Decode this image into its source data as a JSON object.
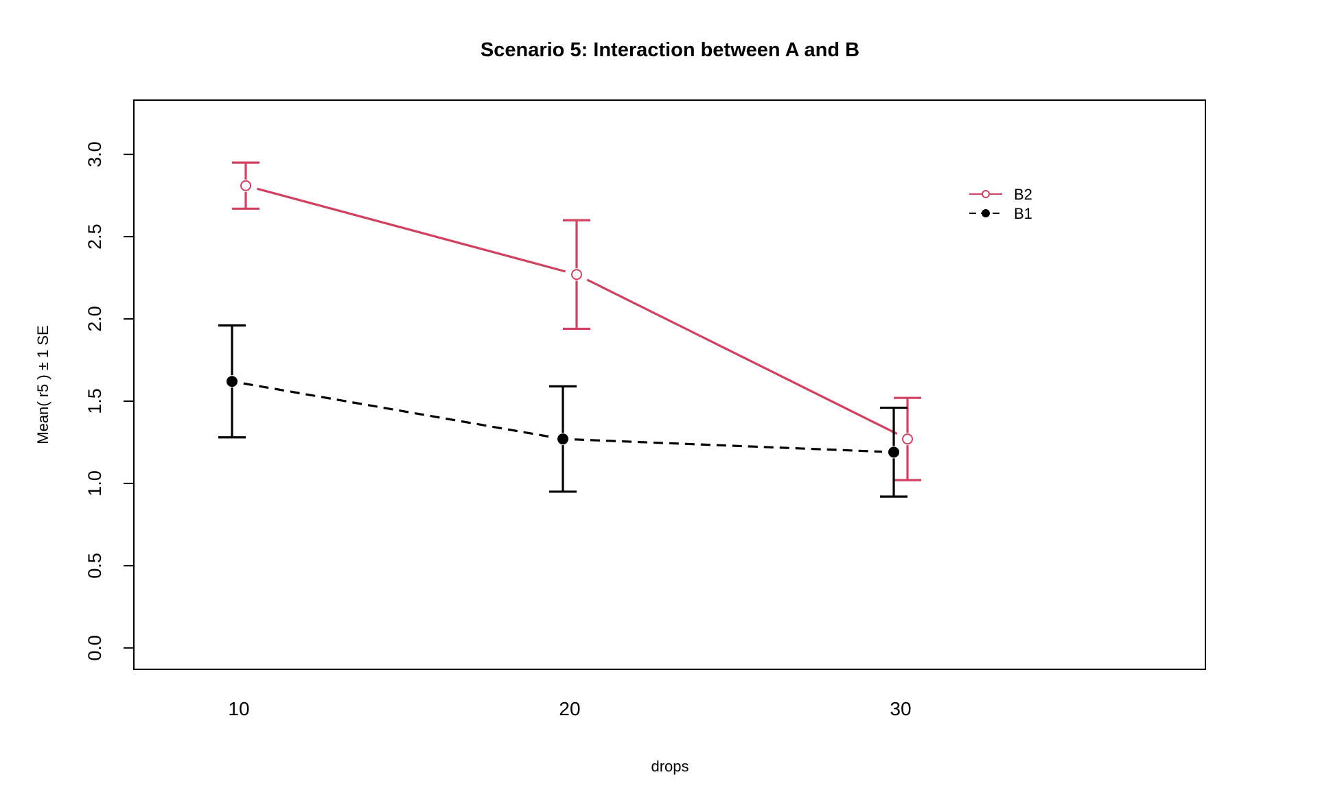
{
  "chart_data": {
    "type": "line",
    "title": "Scenario 5: Interaction between A and B",
    "xlabel": "drops",
    "ylabel": "Mean( r5 ) ± 1 SE",
    "categories": [
      "10",
      "20",
      "30"
    ],
    "y_ticks": [
      "0.0",
      "0.5",
      "1.0",
      "1.5",
      "2.0",
      "2.5",
      "3.0"
    ],
    "ylim": [
      -0.13,
      3.33
    ],
    "legend_position": "top-right",
    "series": [
      {
        "name": "B2",
        "color": "#d2405f",
        "line_style": "solid",
        "marker": "open-circle",
        "values": [
          2.81,
          2.27,
          1.27
        ],
        "se": [
          0.14,
          0.33,
          0.25
        ]
      },
      {
        "name": "B1",
        "color": "#000000",
        "line_style": "dashed",
        "marker": "filled-circle",
        "values": [
          1.62,
          1.27,
          1.19
        ],
        "se": [
          0.34,
          0.32,
          0.27
        ]
      }
    ]
  }
}
